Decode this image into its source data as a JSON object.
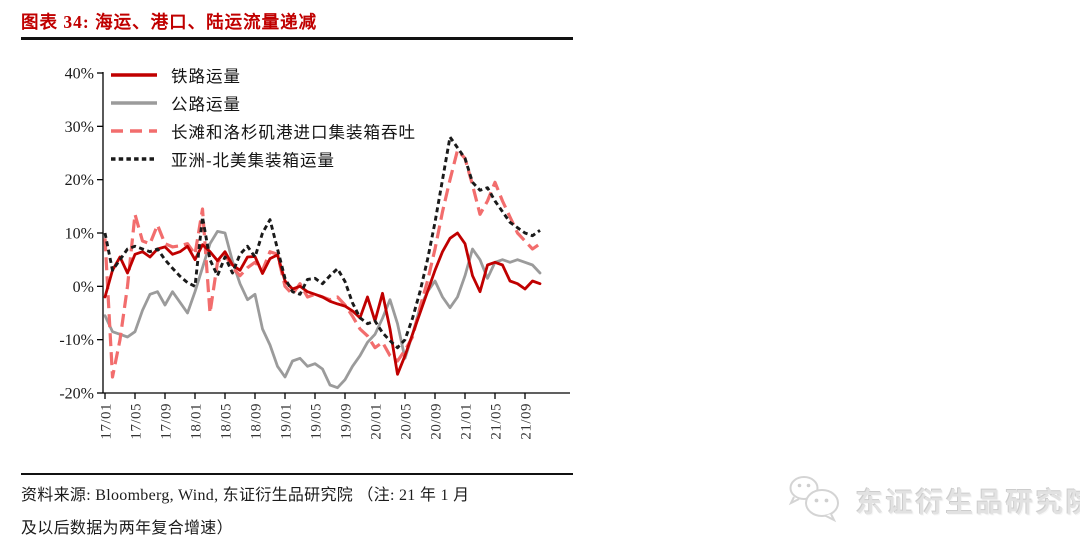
{
  "header": {
    "title": "图表 34:  海运、港口、陆运流量递减"
  },
  "footer": {
    "source_line1": "资料来源: Bloomberg, Wind, 东证衍生品研究院 （注: 21 年 1 月",
    "source_line2": "及以后数据为两年复合增速）",
    "watermark_text": "东证衍生品研究院",
    "watermark_icon": "wechat-icon"
  },
  "colors": {
    "title_accent": "#C00000",
    "rail": "#C00000",
    "road": "#9B9B9B",
    "ports": "#F26D6D",
    "asia_na": "#1A1A1A",
    "axis": "#000000",
    "tick_label": "#333333"
  },
  "chart_data": {
    "type": "line",
    "title": "",
    "xlabel": "",
    "ylabel": "",
    "grid": false,
    "legend_position": "inside-top-left",
    "ylim": [
      -20,
      40
    ],
    "y_ticks": [
      40,
      30,
      20,
      10,
      0,
      -10,
      -20
    ],
    "y_tick_suffix": "%",
    "x_tick_every": 4,
    "x": [
      "17/01",
      "17/02",
      "17/03",
      "17/04",
      "17/05",
      "17/06",
      "17/07",
      "17/08",
      "17/09",
      "17/10",
      "17/11",
      "17/12",
      "18/01",
      "18/02",
      "18/03",
      "18/04",
      "18/05",
      "18/06",
      "18/07",
      "18/08",
      "18/09",
      "18/10",
      "18/11",
      "18/12",
      "19/01",
      "19/02",
      "19/03",
      "19/04",
      "19/05",
      "19/06",
      "19/07",
      "19/08",
      "19/09",
      "19/10",
      "19/11",
      "19/12",
      "20/01",
      "20/02",
      "20/03",
      "20/04",
      "20/05",
      "20/06",
      "20/07",
      "20/08",
      "20/09",
      "20/10",
      "20/11",
      "20/12",
      "21/01",
      "21/02",
      "21/03",
      "21/04",
      "21/05",
      "21/06",
      "21/07",
      "21/08",
      "21/09",
      "21/10",
      "21/11"
    ],
    "series": [
      {
        "id": "rail",
        "name": "铁路运量",
        "color": "#C00000",
        "dash": "solid",
        "width": 2.8,
        "z": 3,
        "values": [
          -2,
          3,
          5.5,
          2.5,
          6,
          6.5,
          5.5,
          7,
          7.4,
          6,
          6.5,
          7.5,
          5,
          7.8,
          6.5,
          4.8,
          6.5,
          4,
          3,
          5.5,
          5.6,
          2.4,
          5.2,
          5.9,
          1,
          -0.5,
          0,
          -1,
          -1.5,
          -2,
          -2.8,
          -3.3,
          -3.7,
          -4.6,
          -5.9,
          -2,
          -6.5,
          -1.3,
          -8,
          -16.5,
          -13,
          -9,
          -5,
          -1,
          3,
          6.5,
          9,
          10,
          8,
          2,
          -1,
          4,
          4.5,
          4,
          1,
          0.5,
          -0.5,
          1,
          0.5
        ]
      },
      {
        "id": "road",
        "name": "公路运量",
        "color": "#9B9B9B",
        "dash": "solid",
        "width": 2.8,
        "z": 1,
        "values": [
          -5.5,
          -8.5,
          -9,
          -9.5,
          -8.5,
          -4.5,
          -1.5,
          -1,
          -3.5,
          -1,
          -3,
          -5,
          -1,
          3.5,
          8,
          10.3,
          10,
          4.7,
          0.5,
          -2.5,
          -1.5,
          -8,
          -11,
          -15,
          -17,
          -14,
          -13.5,
          -15,
          -14.5,
          -15.5,
          -18.5,
          -19,
          -17.5,
          -15,
          -13,
          -10.5,
          -9,
          -6,
          -2.5,
          -7,
          -13.5,
          -9,
          -4,
          -1,
          1,
          -2,
          -4,
          -2,
          2,
          7,
          5,
          1.5,
          4.5,
          5,
          4.5,
          5,
          4.5,
          4,
          2.5
        ]
      },
      {
        "id": "ports",
        "name": "长滩和洛杉矶港进口集装箱吞吐",
        "color": "#F26D6D",
        "dash": "long",
        "width": 3.2,
        "z": 2,
        "values": [
          9,
          -17,
          -10,
          0,
          13.5,
          8.5,
          8,
          11.5,
          8,
          7.4,
          7.6,
          8,
          6,
          14.5,
          -5,
          4.5,
          6,
          3.5,
          2,
          3.5,
          4.5,
          3,
          6.5,
          6,
          0,
          -1.5,
          0.5,
          -2,
          -1.5,
          -2,
          -2.5,
          -2,
          -3.5,
          -5.6,
          -8,
          -9.3,
          -11.5,
          -10.5,
          -13,
          -14,
          -12,
          -9.5,
          -4,
          1,
          7,
          14,
          20,
          25.5,
          24,
          19,
          13.5,
          16,
          19.5,
          16,
          13,
          10,
          8.5,
          7,
          8
        ]
      },
      {
        "id": "asia_na",
        "name": "亚洲-北美集装箱运量",
        "color": "#1A1A1A",
        "dash": "short",
        "width": 2.9,
        "z": 4,
        "values": [
          10,
          3,
          5,
          7,
          7.5,
          7,
          6.5,
          7,
          5,
          3.4,
          1.9,
          0.7,
          0,
          13,
          5,
          2,
          5.5,
          2.5,
          6,
          7.5,
          5.5,
          10,
          12.5,
          7,
          1.5,
          -1,
          -1.5,
          1.3,
          1.5,
          0.5,
          2,
          3.3,
          0.9,
          -3.1,
          -5.9,
          -7,
          -6.5,
          -8.7,
          -10.2,
          -11.5,
          -10,
          -6,
          -1,
          5,
          12,
          20,
          28,
          26,
          24,
          19.5,
          18,
          18.5,
          16,
          14,
          12,
          11,
          10,
          9.5,
          10.5
        ]
      }
    ]
  }
}
